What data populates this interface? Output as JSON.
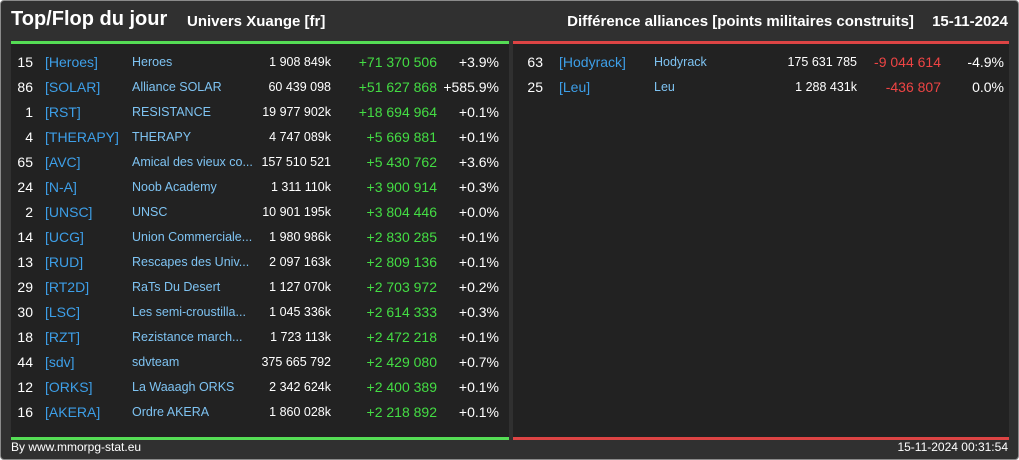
{
  "header": {
    "title": "Top/Flop du jour",
    "universe": "Univers Xuange [fr]",
    "category": "Différence alliances [points militaires construits]",
    "date": "15-11-2024"
  },
  "colors": {
    "top": "#55dd55",
    "flop": "#dd4444",
    "tag": "#3d9fe8",
    "name": "#7ec3f2"
  },
  "top": [
    {
      "rank": "15",
      "tag": "[Heroes]",
      "name": "Heroes",
      "points": "1 908 849k",
      "diff": "+71 370 506",
      "pct": "+3.9%"
    },
    {
      "rank": "86",
      "tag": "[SOLAR]",
      "name": "Alliance SOLAR",
      "points": "60 439 098",
      "diff": "+51 627 868",
      "pct": "+585.9%"
    },
    {
      "rank": "1",
      "tag": "[RST]",
      "name": "RESISTANCE",
      "points": "19 977 902k",
      "diff": "+18 694 964",
      "pct": "+0.1%"
    },
    {
      "rank": "4",
      "tag": "[THERAPY]",
      "name": "THERAPY",
      "points": "4 747 089k",
      "diff": "+5 669 881",
      "pct": "+0.1%"
    },
    {
      "rank": "65",
      "tag": "[AVC]",
      "name": "Amical des vieux co...",
      "points": "157 510 521",
      "diff": "+5 430 762",
      "pct": "+3.6%"
    },
    {
      "rank": "24",
      "tag": "[N-A]",
      "name": "Noob Academy",
      "points": "1 311 110k",
      "diff": "+3 900 914",
      "pct": "+0.3%"
    },
    {
      "rank": "2",
      "tag": "[UNSC]",
      "name": "UNSC",
      "points": "10 901 195k",
      "diff": "+3 804 446",
      "pct": "+0.0%"
    },
    {
      "rank": "14",
      "tag": "[UCG]",
      "name": "Union Commerciale...",
      "points": "1 980 986k",
      "diff": "+2 830 285",
      "pct": "+0.1%"
    },
    {
      "rank": "13",
      "tag": "[RUD]",
      "name": "Rescapes des Univ...",
      "points": "2 097 163k",
      "diff": "+2 809 136",
      "pct": "+0.1%"
    },
    {
      "rank": "29",
      "tag": "[RT2D]",
      "name": "RaTs Du Desert",
      "points": "1 127 070k",
      "diff": "+2 703 972",
      "pct": "+0.2%"
    },
    {
      "rank": "30",
      "tag": "[LSC]",
      "name": "Les semi-croustilla...",
      "points": "1 045 336k",
      "diff": "+2 614 333",
      "pct": "+0.3%"
    },
    {
      "rank": "18",
      "tag": "[RZT]",
      "name": "Rezistance march...",
      "points": "1 723 113k",
      "diff": "+2 472 218",
      "pct": "+0.1%"
    },
    {
      "rank": "44",
      "tag": "[sdv]",
      "name": "sdvteam",
      "points": "375 665 792",
      "diff": "+2 429 080",
      "pct": "+0.7%"
    },
    {
      "rank": "12",
      "tag": "[ORKS]",
      "name": "La Waaagh ORKS",
      "points": "2 342 624k",
      "diff": "+2 400 389",
      "pct": "+0.1%"
    },
    {
      "rank": "16",
      "tag": "[AKERA]",
      "name": "Ordre AKERA",
      "points": "1 860 028k",
      "diff": "+2 218 892",
      "pct": "+0.1%"
    }
  ],
  "flop": [
    {
      "rank": "63",
      "tag": "[Hodyrack]",
      "name": "Hodyrack",
      "points": "175 631 785",
      "diff": "-9 044 614",
      "pct": "-4.9%"
    },
    {
      "rank": "25",
      "tag": "[Leu]",
      "name": "Leu",
      "points": "1 288 431k",
      "diff": "-436 807",
      "pct": "0.0%"
    }
  ],
  "footer": {
    "credit": "By www.mmorpg-stat.eu",
    "timestamp": "15-11-2024 00:31:54"
  }
}
